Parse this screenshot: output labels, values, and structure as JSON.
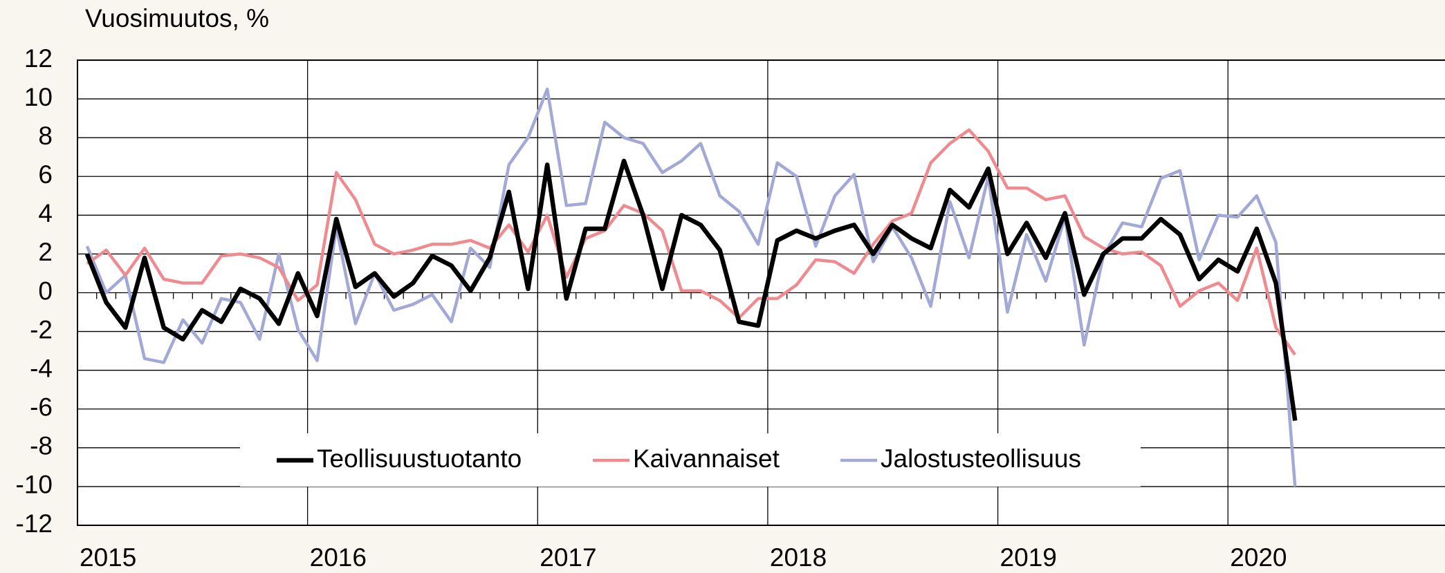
{
  "chart_data": {
    "type": "line",
    "y_axis_label": "Vuosimuutos, %",
    "categories": [
      "2015",
      null,
      null,
      null,
      null,
      null,
      null,
      null,
      null,
      null,
      null,
      null,
      "2016",
      null,
      null,
      null,
      null,
      null,
      null,
      null,
      null,
      null,
      null,
      null,
      "2017",
      null,
      null,
      null,
      null,
      null,
      null,
      null,
      null,
      null,
      null,
      null,
      "2018",
      null,
      null,
      null,
      null,
      null,
      null,
      null,
      null,
      null,
      null,
      null,
      "2019",
      null,
      null,
      null,
      null,
      null,
      null,
      null,
      null,
      null,
      null,
      null,
      "2020",
      null,
      null,
      null,
      null,
      null,
      null,
      null,
      null,
      null,
      null,
      null
    ],
    "series": [
      {
        "name": "Teollisuustuotanto",
        "color": "#000000",
        "values": [
          2.0,
          -0.5,
          -1.8,
          1.8,
          -1.8,
          -2.4,
          -0.9,
          -1.5,
          0.2,
          -0.3,
          -1.6,
          1.0,
          -1.2,
          3.8,
          0.3,
          1.0,
          -0.2,
          0.5,
          1.9,
          1.4,
          0.1,
          1.8,
          5.2,
          0.2,
          6.6,
          -0.3,
          3.3,
          3.3,
          6.8,
          4.0,
          0.2,
          4.0,
          3.5,
          2.2,
          -1.5,
          -1.7,
          2.7,
          3.2,
          2.8,
          3.2,
          3.5,
          2.0,
          3.5,
          2.8,
          2.3,
          5.3,
          4.4,
          6.4,
          2.0,
          3.6,
          1.8,
          4.1,
          -0.1,
          2.0,
          2.8,
          2.8,
          3.8,
          3.0,
          0.7,
          1.7,
          1.1,
          3.3,
          0.5,
          -6.6,
          null,
          null,
          null,
          null,
          null,
          null,
          null,
          null
        ]
      },
      {
        "name": "Kaivannaiset",
        "color": "#ef8a8f",
        "values": [
          1.5,
          2.2,
          0.9,
          2.3,
          0.7,
          0.5,
          0.5,
          1.9,
          2.0,
          1.8,
          1.3,
          -0.4,
          0.4,
          6.2,
          4.8,
          2.5,
          2.0,
          2.2,
          2.5,
          2.5,
          2.7,
          2.3,
          3.5,
          2.1,
          4.0,
          0.8,
          2.8,
          3.2,
          4.5,
          4.1,
          3.2,
          0.1,
          0.1,
          -0.4,
          -1.3,
          -0.3,
          -0.3,
          0.4,
          1.7,
          1.6,
          1.0,
          2.5,
          3.7,
          4.1,
          6.7,
          7.7,
          8.4,
          7.3,
          5.4,
          5.4,
          4.8,
          5.0,
          2.9,
          2.3,
          2.0,
          2.1,
          1.4,
          -0.7,
          0.1,
          0.5,
          -0.4,
          2.3,
          -1.8,
          -3.2,
          null,
          null,
          null,
          null,
          null,
          null,
          null,
          null
        ]
      },
      {
        "name": "Jalostusteollisuus",
        "color": "#a3a9d6",
        "values": [
          2.4,
          0.0,
          0.9,
          -3.4,
          -3.6,
          -1.4,
          -2.6,
          -0.3,
          -0.5,
          -2.4,
          2.0,
          -1.9,
          -3.5,
          3.4,
          -1.6,
          1.0,
          -0.9,
          -0.6,
          -0.1,
          -1.5,
          2.3,
          1.3,
          6.6,
          8.0,
          10.5,
          4.5,
          4.6,
          8.8,
          8.0,
          7.7,
          6.2,
          6.8,
          7.7,
          5.0,
          4.2,
          2.5,
          6.7,
          6.0,
          2.4,
          5.0,
          6.1,
          1.6,
          3.4,
          1.8,
          -0.7,
          4.7,
          1.8,
          6.0,
          -1.0,
          3.0,
          0.6,
          3.9,
          -2.7,
          1.9,
          3.6,
          3.4,
          5.9,
          6.3,
          1.7,
          4.0,
          3.9,
          5.0,
          2.6,
          -10.0,
          null,
          null,
          null,
          null,
          null,
          null,
          null,
          null
        ]
      }
    ],
    "ylim": [
      -12,
      12
    ],
    "yticks": [
      -12,
      -10,
      -8,
      -6,
      -4,
      -2,
      0,
      2,
      4,
      6,
      8,
      10,
      12
    ],
    "grid": true,
    "legend": "bottom"
  }
}
